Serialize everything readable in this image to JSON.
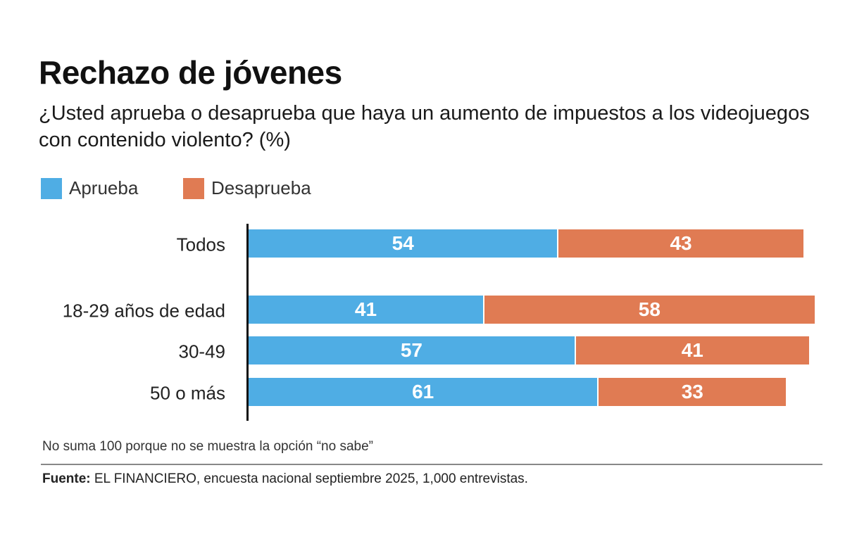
{
  "colors": {
    "aprueba": "#4FADE4",
    "desaprueba": "#E07B53"
  },
  "chart_data": {
    "type": "bar",
    "orientation": "horizontal",
    "stacked": true,
    "title": "Rechazo de jóvenes",
    "subtitle": "¿Usted aprueba o desaprueba que haya un aumento de impuestos a los videojuegos con contenido violento? (%)",
    "categories": [
      "Todos",
      "18-29 años de edad",
      "30-49",
      "50 o más"
    ],
    "series": [
      {
        "name": "Aprueba",
        "values": [
          54,
          41,
          57,
          61
        ]
      },
      {
        "name": "Desaprueba",
        "values": [
          43,
          58,
          41,
          33
        ]
      }
    ],
    "xlim": [
      0,
      100
    ],
    "grid": false,
    "legend": "top-left"
  },
  "note": "No suma 100 porque no se muestra la opción “no sabe”",
  "source": {
    "label": "Fuente:",
    "text": " EL FINANCIERO, encuesta nacional septiembre 2025, 1,000 entrevistas."
  }
}
